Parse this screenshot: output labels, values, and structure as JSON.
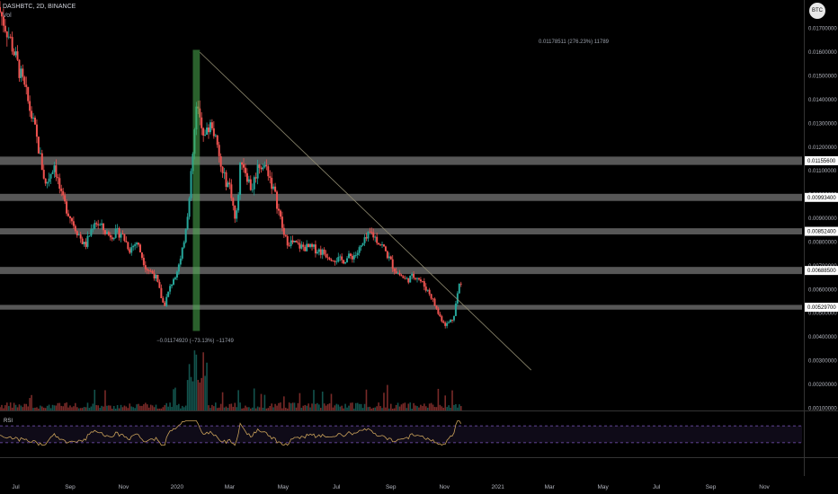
{
  "header": {
    "title": "DASHBTC, 2D, BINANCE",
    "vol_label": "Vol",
    "currency_badge": "BTC",
    "currency_prefix": "0.0"
  },
  "rsi_label": "RSI",
  "annotations": {
    "top_measure": "0.01178511 (276.23%) 11789",
    "bottom_measure": "−0.01174920 (−73.13%) −11749"
  },
  "colors": {
    "up": "#26a69a",
    "down": "#ef5350",
    "rsi_line": "#c9a15a",
    "rsi_band": "#7e57c2",
    "zone": "#9e9e9e",
    "trendline": "#8f8a70",
    "measure_box": "#4caf50"
  },
  "chart_data": {
    "type": "candlestick",
    "symbol": "DASHBTC",
    "interval": "2D",
    "exchange": "BINANCE",
    "ylim": [
      0.0009,
      0.0182
    ],
    "y_ticks": [
      0.017,
      0.016,
      0.015,
      0.014,
      0.013,
      0.012,
      0.011,
      0.01,
      0.009,
      0.008,
      0.007,
      0.006,
      0.005,
      0.004,
      0.003,
      0.002,
      0.001
    ],
    "y_tick_labels": [
      "0.01700000",
      "0.01600000",
      "0.01500000",
      "0.01400000",
      "0.01300000",
      "0.01200000",
      "0.01100000",
      "0.01000000",
      "0.00900000",
      "0.00800000",
      "0.00700000",
      "0.00600000",
      "0.00500000",
      "0.00400000",
      "0.00300000",
      "0.00200000",
      "0.00100000"
    ],
    "x_ticks": [
      {
        "label": "Jul",
        "date": "2019-07-01"
      },
      {
        "label": "Sep",
        "date": "2019-09-01"
      },
      {
        "label": "Nov",
        "date": "2019-11-01"
      },
      {
        "label": "2020",
        "date": "2020-01-01"
      },
      {
        "label": "Mar",
        "date": "2020-03-01"
      },
      {
        "label": "May",
        "date": "2020-05-01"
      },
      {
        "label": "Jul",
        "date": "2020-07-01"
      },
      {
        "label": "Sep",
        "date": "2020-09-01"
      },
      {
        "label": "Nov",
        "date": "2020-11-01"
      },
      {
        "label": "2021",
        "date": "2021-01-01"
      },
      {
        "label": "Mar",
        "date": "2021-03-01"
      },
      {
        "label": "May",
        "date": "2021-05-01"
      },
      {
        "label": "Jul",
        "date": "2021-07-01"
      },
      {
        "label": "Sep",
        "date": "2021-09-01"
      },
      {
        "label": "Nov",
        "date": "2021-11-01"
      }
    ],
    "support_resistance_zones": [
      {
        "label": "0.01155600",
        "low": 0.01125,
        "high": 0.0116
      },
      {
        "label": "0.00993400",
        "low": 0.00973,
        "high": 0.01003
      },
      {
        "label": "0.00852400",
        "low": 0.00832,
        "high": 0.00858
      },
      {
        "label": "0.00688500",
        "low": 0.00665,
        "high": 0.00695
      },
      {
        "label": "0.00529700",
        "low": 0.00515,
        "high": 0.00535
      }
    ],
    "trendline": {
      "from": {
        "date": "2020-01-27",
        "value": 0.016
      },
      "to": {
        "date": "2021-02-08",
        "value": 0.0026
      }
    },
    "measure_box": {
      "from_date": "2020-01-19",
      "to_date": "2020-01-27",
      "low": 0.00425,
      "high": 0.0161
    },
    "price_path": [
      {
        "date": "2019-06-13",
        "value": 0.0179
      },
      {
        "date": "2019-06-27",
        "value": 0.0165
      },
      {
        "date": "2019-07-15",
        "value": 0.0142
      },
      {
        "date": "2019-07-25",
        "value": 0.0127
      },
      {
        "date": "2019-08-06",
        "value": 0.0104
      },
      {
        "date": "2019-08-16",
        "value": 0.0113
      },
      {
        "date": "2019-08-24",
        "value": 0.0099
      },
      {
        "date": "2019-09-09",
        "value": 0.0086
      },
      {
        "date": "2019-09-20",
        "value": 0.0078
      },
      {
        "date": "2019-10-01",
        "value": 0.0089
      },
      {
        "date": "2019-10-17",
        "value": 0.0083
      },
      {
        "date": "2019-10-31",
        "value": 0.0084
      },
      {
        "date": "2019-11-10",
        "value": 0.0077
      },
      {
        "date": "2019-11-18",
        "value": 0.008
      },
      {
        "date": "2019-11-29",
        "value": 0.0069
      },
      {
        "date": "2019-12-09",
        "value": 0.0066
      },
      {
        "date": "2019-12-19",
        "value": 0.0053
      },
      {
        "date": "2019-12-29",
        "value": 0.0064
      },
      {
        "date": "2020-01-08",
        "value": 0.0073
      },
      {
        "date": "2020-01-17",
        "value": 0.0098
      },
      {
        "date": "2020-01-25",
        "value": 0.0136
      },
      {
        "date": "2020-02-04",
        "value": 0.0125
      },
      {
        "date": "2020-02-12",
        "value": 0.013
      },
      {
        "date": "2020-02-24",
        "value": 0.0108
      },
      {
        "date": "2020-03-04",
        "value": 0.0103
      },
      {
        "date": "2020-03-10",
        "value": 0.0087
      },
      {
        "date": "2020-03-16",
        "value": 0.0116
      },
      {
        "date": "2020-03-28",
        "value": 0.0102
      },
      {
        "date": "2020-04-05",
        "value": 0.0113
      },
      {
        "date": "2020-04-15",
        "value": 0.0111
      },
      {
        "date": "2020-04-25",
        "value": 0.0098
      },
      {
        "date": "2020-05-05",
        "value": 0.0081
      },
      {
        "date": "2020-05-23",
        "value": 0.0078
      },
      {
        "date": "2020-06-10",
        "value": 0.0077
      },
      {
        "date": "2020-06-26",
        "value": 0.0074
      },
      {
        "date": "2020-07-08",
        "value": 0.0072
      },
      {
        "date": "2020-07-26",
        "value": 0.0075
      },
      {
        "date": "2020-08-11",
        "value": 0.0084
      },
      {
        "date": "2020-08-25",
        "value": 0.0078
      },
      {
        "date": "2020-09-08",
        "value": 0.0068
      },
      {
        "date": "2020-09-20",
        "value": 0.0064
      },
      {
        "date": "2020-10-02",
        "value": 0.0066
      },
      {
        "date": "2020-10-18",
        "value": 0.0058
      },
      {
        "date": "2020-10-28",
        "value": 0.0049
      },
      {
        "date": "2020-11-05",
        "value": 0.0045
      },
      {
        "date": "2020-11-13",
        "value": 0.0048
      },
      {
        "date": "2020-11-20",
        "value": 0.0062
      }
    ],
    "rsi_bands": [
      70,
      30
    ]
  }
}
